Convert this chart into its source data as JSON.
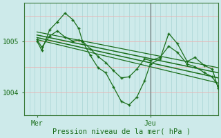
{
  "xlabel": "Pression niveau de la mer( hPa )",
  "bg_color": "#cdeaea",
  "grid_color_v": "#a8d4d4",
  "grid_color_h": "#e8b4b4",
  "line_color": "#1a6e1a",
  "axis_color": "#3a7a3a",
  "text_color": "#1a6e1a",
  "yticks": [
    1004,
    1005
  ],
  "xtick_labels": [
    "Mer",
    "Jeu"
  ],
  "ylim": [
    1003.55,
    1005.75
  ],
  "xlim": [
    0.0,
    1.0
  ],
  "xtick_pos": [
    0.065,
    0.65
  ],
  "line1_x": [
    0.065,
    0.09,
    0.13,
    0.17,
    0.21,
    0.25,
    0.28,
    0.3,
    0.34,
    0.38,
    0.42,
    0.46,
    0.5,
    0.54,
    0.58,
    0.62,
    0.65,
    0.7,
    0.745,
    0.79,
    0.84,
    0.88,
    0.93,
    0.97,
    1.0
  ],
  "line1_y": [
    1005.0,
    1004.82,
    1005.22,
    1005.38,
    1005.55,
    1005.42,
    1005.25,
    1005.0,
    1004.72,
    1004.48,
    1004.38,
    1004.1,
    1003.82,
    1003.75,
    1003.9,
    1004.22,
    1004.55,
    1004.65,
    1005.15,
    1004.95,
    1004.6,
    1004.68,
    1004.52,
    1004.45,
    1004.08
  ],
  "line2_x": [
    0.065,
    0.09,
    0.13,
    0.17,
    0.21,
    0.25,
    0.28,
    0.3,
    0.34,
    0.38,
    0.42,
    0.46,
    0.5,
    0.54,
    0.58,
    0.62,
    0.65,
    0.7,
    0.745,
    0.79,
    0.84,
    0.88,
    0.93,
    0.97,
    1.0
  ],
  "line2_y": [
    1005.03,
    1004.88,
    1005.1,
    1005.2,
    1005.08,
    1005.0,
    1005.02,
    1005.0,
    1004.85,
    1004.7,
    1004.58,
    1004.42,
    1004.28,
    1004.3,
    1004.45,
    1004.65,
    1004.62,
    1004.68,
    1004.9,
    1004.78,
    1004.55,
    1004.5,
    1004.38,
    1004.3,
    1004.12
  ],
  "trend1_x": [
    0.065,
    1.0
  ],
  "trend1_y": [
    1005.18,
    1004.48
  ],
  "trend2_x": [
    0.065,
    1.0
  ],
  "trend2_y": [
    1005.12,
    1004.38
  ],
  "trend3_x": [
    0.065,
    1.0
  ],
  "trend3_y": [
    1005.07,
    1004.28
  ],
  "trend4_x": [
    0.065,
    1.0
  ],
  "trend4_y": [
    1005.03,
    1004.18
  ],
  "vline_x": 0.65
}
